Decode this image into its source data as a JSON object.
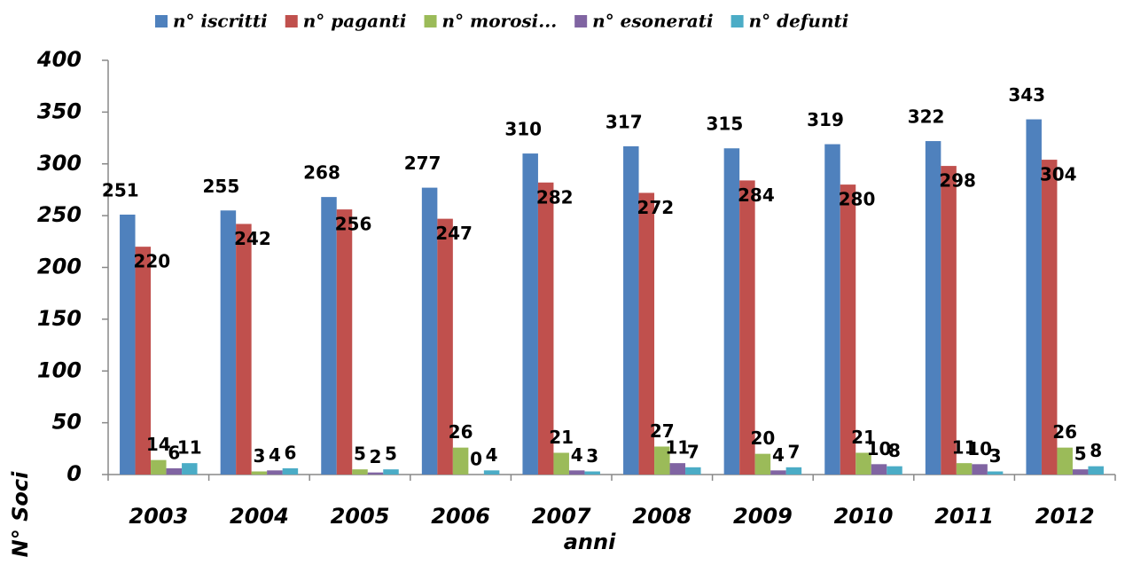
{
  "chart_data": {
    "type": "bar",
    "x_label": "anni",
    "y_label": "N° Soci",
    "categories": [
      "2003",
      "2004",
      "2005",
      "2006",
      "2007",
      "2008",
      "2009",
      "2010",
      "2011",
      "2012"
    ],
    "series": [
      {
        "name": "n° iscritti",
        "color": "#4f81bd",
        "values": [
          251,
          255,
          268,
          277,
          310,
          317,
          315,
          319,
          322,
          343
        ]
      },
      {
        "name": "n° paganti",
        "color": "#c0504d",
        "values": [
          220,
          242,
          256,
          247,
          282,
          272,
          284,
          280,
          298,
          304
        ]
      },
      {
        "name": "n° morosi...",
        "color": "#9bbb59",
        "values": [
          14,
          3,
          5,
          26,
          21,
          27,
          20,
          21,
          11,
          26
        ]
      },
      {
        "name": "n° esonerati",
        "color": "#8064a2",
        "values": [
          6,
          4,
          2,
          0,
          4,
          11,
          4,
          10,
          10,
          5
        ]
      },
      {
        "name": "n° defunti",
        "color": "#4bacc6",
        "values": [
          11,
          6,
          5,
          4,
          3,
          7,
          7,
          8,
          3,
          8
        ]
      }
    ],
    "ylim": [
      0,
      400
    ],
    "yticks": [
      0,
      50,
      100,
      150,
      200,
      250,
      300,
      350,
      400
    ],
    "grid": false,
    "legend": "top"
  }
}
